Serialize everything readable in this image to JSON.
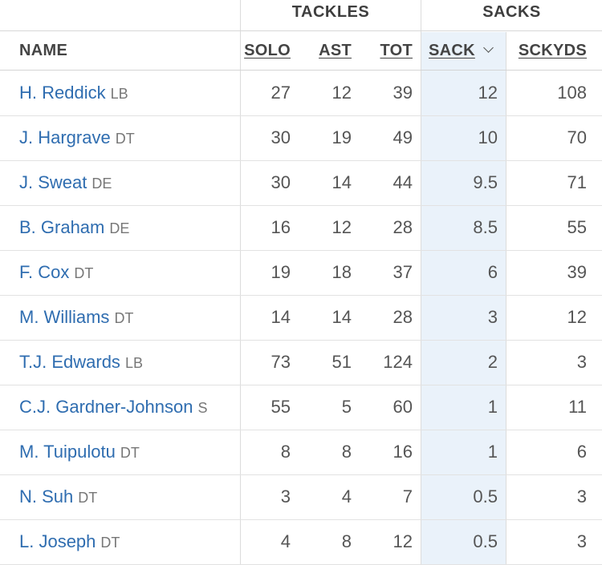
{
  "table": {
    "groups": {
      "tackles": "TACKLES",
      "sacks": "SACKS"
    },
    "columns": {
      "name": "NAME",
      "solo": "SOLO",
      "ast": "AST",
      "tot": "TOT",
      "sack": "SACK",
      "sckyds": "SCKYDS"
    },
    "sorted_column": "sack",
    "sort_highlight_color": "#eaf2fa",
    "link_color": "#2f6db0",
    "rows": [
      {
        "name": "H. Reddick",
        "pos": "LB",
        "solo": "27",
        "ast": "12",
        "tot": "39",
        "sack": "12",
        "sckyds": "108"
      },
      {
        "name": "J. Hargrave",
        "pos": "DT",
        "solo": "30",
        "ast": "19",
        "tot": "49",
        "sack": "10",
        "sckyds": "70"
      },
      {
        "name": "J. Sweat",
        "pos": "DE",
        "solo": "30",
        "ast": "14",
        "tot": "44",
        "sack": "9.5",
        "sckyds": "71"
      },
      {
        "name": "B. Graham",
        "pos": "DE",
        "solo": "16",
        "ast": "12",
        "tot": "28",
        "sack": "8.5",
        "sckyds": "55"
      },
      {
        "name": "F. Cox",
        "pos": "DT",
        "solo": "19",
        "ast": "18",
        "tot": "37",
        "sack": "6",
        "sckyds": "39"
      },
      {
        "name": "M. Williams",
        "pos": "DT",
        "solo": "14",
        "ast": "14",
        "tot": "28",
        "sack": "3",
        "sckyds": "12"
      },
      {
        "name": "T.J. Edwards",
        "pos": "LB",
        "solo": "73",
        "ast": "51",
        "tot": "124",
        "sack": "2",
        "sckyds": "3"
      },
      {
        "name": "C.J. Gardner-Johnson",
        "pos": "S",
        "solo": "55",
        "ast": "5",
        "tot": "60",
        "sack": "1",
        "sckyds": "11"
      },
      {
        "name": "M. Tuipulotu",
        "pos": "DT",
        "solo": "8",
        "ast": "8",
        "tot": "16",
        "sack": "1",
        "sckyds": "6"
      },
      {
        "name": "N. Suh",
        "pos": "DT",
        "solo": "3",
        "ast": "4",
        "tot": "7",
        "sack": "0.5",
        "sckyds": "3"
      },
      {
        "name": "L. Joseph",
        "pos": "DT",
        "solo": "4",
        "ast": "8",
        "tot": "12",
        "sack": "0.5",
        "sckyds": "3"
      }
    ]
  }
}
